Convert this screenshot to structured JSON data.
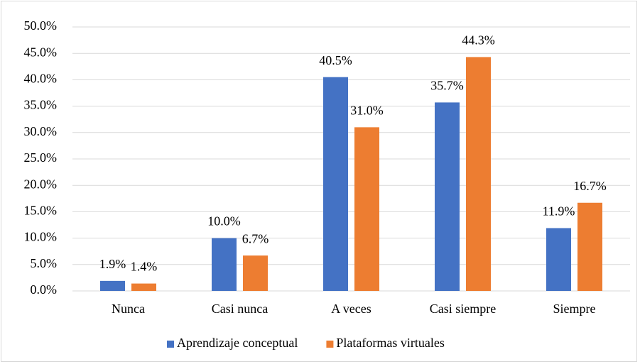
{
  "chart_data": {
    "type": "bar",
    "categories": [
      "Nunca",
      "Casi nunca",
      "A veces",
      "Casi siempre",
      "Siempre"
    ],
    "series": [
      {
        "name": "Aprendizaje conceptual",
        "color": "#4472c4",
        "values": [
          1.9,
          10.0,
          40.5,
          35.7,
          11.9
        ],
        "value_labels": [
          "1.9%",
          "10.0%",
          "40.5%",
          "35.7%",
          "11.9%"
        ]
      },
      {
        "name": "Plataformas virtuales",
        "color": "#ed7d31",
        "values": [
          1.4,
          6.7,
          31.0,
          44.3,
          16.7
        ],
        "value_labels": [
          "1.4%",
          "6.7%",
          "31.0%",
          "44.3%",
          "16.7%"
        ]
      }
    ],
    "ylim": [
      0,
      50
    ],
    "yticks": [
      {
        "value": 0,
        "label": "0.0%"
      },
      {
        "value": 5,
        "label": "5.0%"
      },
      {
        "value": 10,
        "label": "10.0%"
      },
      {
        "value": 15,
        "label": "15.0%"
      },
      {
        "value": 20,
        "label": "20.0%"
      },
      {
        "value": 25,
        "label": "25.0%"
      },
      {
        "value": 30,
        "label": "30.0%"
      },
      {
        "value": 35,
        "label": "35.0%"
      },
      {
        "value": 40,
        "label": "40.0%"
      },
      {
        "value": 45,
        "label": "45.0%"
      },
      {
        "value": 50,
        "label": "50.0%"
      }
    ],
    "grid": true,
    "legend": "bottom"
  }
}
